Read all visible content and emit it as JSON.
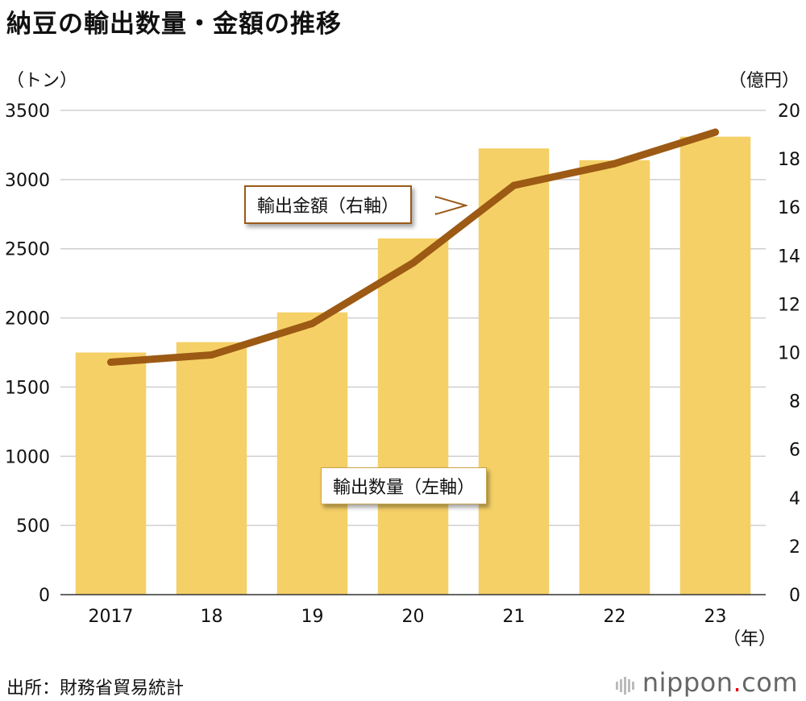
{
  "title": "納豆の輸出数量・金額の推移",
  "left_unit": "（トン）",
  "right_unit": "（億円）",
  "x_unit": "（年）",
  "source": "出所：財務省貿易統計",
  "logo": {
    "text": "nippon",
    "dot": ".",
    "tld": "com"
  },
  "colors": {
    "bar": "#f5d066",
    "line": "#9c5a14",
    "grid": "#cfcfcf",
    "axis": "#333333"
  },
  "chart_data": {
    "type": "bar+line",
    "categories": [
      "2017",
      "18",
      "19",
      "20",
      "21",
      "22",
      "23"
    ],
    "series": [
      {
        "name": "輸出数量（左軸）",
        "type": "bar",
        "axis": "left",
        "values": [
          1750,
          1825,
          2040,
          2575,
          3225,
          3140,
          3310
        ]
      },
      {
        "name": "輸出金額（右軸）",
        "type": "line",
        "axis": "right",
        "values": [
          9.6,
          9.9,
          11.2,
          13.7,
          16.9,
          17.8,
          19.1
        ]
      }
    ],
    "left_axis": {
      "min": 0,
      "max": 3500,
      "ticks": [
        "0",
        "500",
        "1000",
        "1500",
        "2000",
        "2500",
        "3000",
        "3500"
      ]
    },
    "right_axis": {
      "min": 0,
      "max": 20,
      "ticks": [
        "0",
        "2",
        "4",
        "6",
        "8",
        "10",
        "12",
        "14",
        "16",
        "18",
        "20"
      ]
    },
    "grid": true
  }
}
